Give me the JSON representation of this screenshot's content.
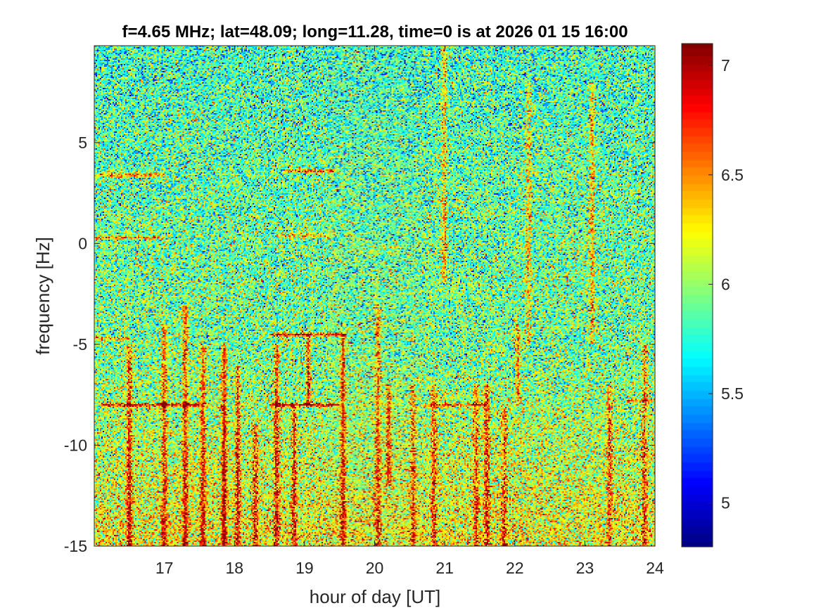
{
  "chart_data": {
    "type": "heatmap",
    "title": "f=4.65 MHz;  lat=48.09; long=11.28, time=0 is at 2026 01 15 16:00",
    "xlabel": "hour of day [UT]",
    "ylabel": "frequency [Hz]",
    "xlim": [
      16,
      24
    ],
    "ylim": [
      -15,
      9.8
    ],
    "x_ticks": [
      17,
      18,
      19,
      20,
      21,
      22,
      23,
      24
    ],
    "y_ticks": [
      -15,
      -10,
      -5,
      0,
      5
    ],
    "x_tick_labels": [
      "17",
      "18",
      "19",
      "20",
      "21",
      "22",
      "23",
      "24"
    ],
    "y_tick_labels": [
      "-15",
      "-10",
      "-5",
      "0",
      "5"
    ],
    "colormap": "jet",
    "colorbar": {
      "clim": [
        4.8,
        7.1
      ],
      "ticks": [
        5,
        5.5,
        6,
        6.5,
        7
      ],
      "tick_labels": [
        "5",
        "5.5",
        "6",
        "6.5",
        "7"
      ],
      "placement": "right"
    },
    "grid": false,
    "features": {
      "background_level": 5.9,
      "low_frequency_enhancement_below_hz": -5,
      "horizontal_traces": [
        {
          "y": 3.4,
          "x0": 16.0,
          "x1": 17.0,
          "level": 6.7
        },
        {
          "y": 3.6,
          "x0": 18.7,
          "x1": 19.5,
          "level": 6.8
        },
        {
          "y": 0.3,
          "x0": 16.0,
          "x1": 17.0,
          "level": 6.6
        },
        {
          "y": 0.4,
          "x0": 18.6,
          "x1": 19.4,
          "level": 6.5
        },
        {
          "y": -4.5,
          "x0": 18.5,
          "x1": 19.6,
          "level": 6.9
        },
        {
          "y": -4.7,
          "x0": 16.0,
          "x1": 16.5,
          "level": 6.7
        },
        {
          "y": -8.0,
          "x0": 16.1,
          "x1": 17.5,
          "level": 6.9
        },
        {
          "y": -8.0,
          "x0": 18.5,
          "x1": 19.5,
          "level": 6.9
        },
        {
          "y": -8.0,
          "x0": 20.7,
          "x1": 21.6,
          "level": 6.6
        },
        {
          "y": -7.8,
          "x0": 23.6,
          "x1": 24.0,
          "level": 6.6
        }
      ],
      "vertical_streaks": [
        {
          "x": 16.5,
          "y0": -15,
          "y1": -5,
          "level": 6.9
        },
        {
          "x": 17.0,
          "y0": -15,
          "y1": -4,
          "level": 6.8
        },
        {
          "x": 17.3,
          "y0": -15,
          "y1": -3,
          "level": 6.9
        },
        {
          "x": 17.55,
          "y0": -15,
          "y1": -5,
          "level": 6.8
        },
        {
          "x": 17.85,
          "y0": -15,
          "y1": -5,
          "level": 7.0
        },
        {
          "x": 18.05,
          "y0": -15,
          "y1": -6,
          "level": 6.8
        },
        {
          "x": 18.3,
          "y0": -15,
          "y1": -9,
          "level": 6.7
        },
        {
          "x": 18.6,
          "y0": -15,
          "y1": -5,
          "level": 6.9
        },
        {
          "x": 18.85,
          "y0": -15,
          "y1": -8,
          "level": 6.7
        },
        {
          "x": 19.05,
          "y0": -8,
          "y1": -4.5,
          "level": 6.9
        },
        {
          "x": 19.55,
          "y0": -15,
          "y1": -4.5,
          "level": 6.9
        },
        {
          "x": 20.05,
          "y0": -15,
          "y1": -3,
          "level": 6.7
        },
        {
          "x": 20.2,
          "y0": -12,
          "y1": -7,
          "level": 6.8
        },
        {
          "x": 20.55,
          "y0": -15,
          "y1": -7,
          "level": 6.6
        },
        {
          "x": 20.85,
          "y0": -15,
          "y1": -7,
          "level": 6.6
        },
        {
          "x": 21.0,
          "y0": -2,
          "y1": 9.8,
          "level": 6.6
        },
        {
          "x": 21.45,
          "y0": -15,
          "y1": -7,
          "level": 6.6
        },
        {
          "x": 21.6,
          "y0": -15,
          "y1": -7,
          "level": 6.8
        },
        {
          "x": 21.85,
          "y0": -15,
          "y1": -8,
          "level": 6.6
        },
        {
          "x": 22.05,
          "y0": -8,
          "y1": -4,
          "level": 6.6
        },
        {
          "x": 22.2,
          "y0": -5,
          "y1": 8,
          "level": 6.5
        },
        {
          "x": 23.1,
          "y0": -5,
          "y1": 8,
          "level": 6.6
        },
        {
          "x": 23.35,
          "y0": -15,
          "y1": -7,
          "level": 6.6
        },
        {
          "x": 23.85,
          "y0": -15,
          "y1": -5,
          "level": 6.6
        }
      ]
    }
  }
}
